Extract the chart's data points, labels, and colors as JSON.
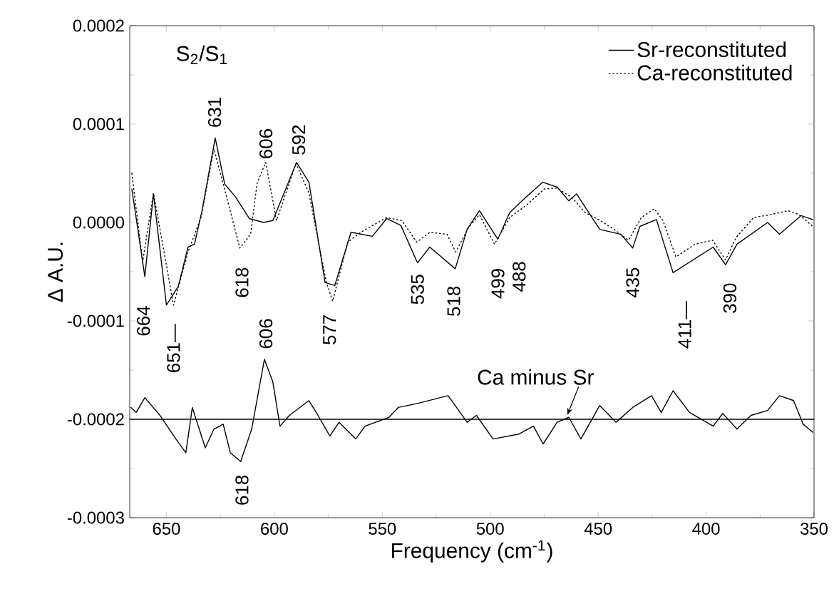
{
  "chart_data": {
    "type": "line",
    "xlabel": "Frequency (cm$^{-1}$)",
    "ylabel": "Δ A.U.",
    "xlim": [
      667,
      350
    ],
    "ylim": [
      -0.0003,
      0.0002
    ],
    "xticks": [
      650,
      600,
      550,
      500,
      450,
      400,
      350
    ],
    "yticks": [
      -0.0003,
      -0.0002,
      -0.0001,
      {
        "value": 0,
        "label": "0.0000"
      },
      0.0001,
      0.0002
    ],
    "legend": "top right",
    "marker": "none",
    "series": [
      {
        "name": "Sr-reconstituted",
        "color": "#000000",
        "line_style": "solid",
        "x": [
          666,
          660,
          656,
          650,
          644.5,
          640,
          637,
          633.5,
          627.4,
          623,
          618,
          611.6,
          605,
          600.7,
          589.7,
          584,
          576.5,
          572,
          564.5,
          554.6,
          548,
          541.4,
          533.7,
          528,
          516.2,
          510.7,
          505,
          496.5,
          491,
          483.3,
          475.7,
          469,
          463.6,
          460,
          449.3,
          439.5,
          434,
          430.7,
          423,
          415.3,
          396.7,
          391,
          385.7,
          371.5,
          366,
          356,
          350.7
        ],
        "values": [
          3.4e-05,
          -5.5e-05,
          2.9e-05,
          -8.4e-05,
          -6.5e-05,
          -2.5e-05,
          -2.2e-05,
          1.2e-05,
          8.6e-05,
          3.9e-05,
          2.6e-05,
          4e-06,
          0,
          2e-06,
          6.1e-05,
          4.1e-05,
          -6.1e-05,
          -6.4e-05,
          -1e-05,
          -1.4e-05,
          4e-06,
          -3e-06,
          -4.1e-05,
          -2.5e-05,
          -4.7e-05,
          -7e-06,
          1.2e-05,
          -1.7e-05,
          1e-05,
          2.6e-05,
          4.1e-05,
          3.6e-05,
          2.2e-05,
          2.9e-05,
          -7e-06,
          -1.2e-05,
          -2.6e-05,
          -4e-06,
          3e-06,
          -5.1e-05,
          -2.5e-05,
          -4.3e-05,
          -2.2e-05,
          0,
          -1.2e-05,
          7e-06,
          3e-06
        ]
      },
      {
        "name": "Ca-reconstituted",
        "color": "#000000",
        "line_style": "dotted",
        "x": [
          666,
          661,
          656,
          646.7,
          640,
          634,
          628,
          622,
          616,
          611,
          608,
          604,
          599,
          590,
          584,
          576,
          573,
          566,
          560,
          548,
          541,
          534,
          528,
          520,
          516,
          510,
          505,
          498,
          491,
          483,
          475,
          469,
          462,
          456,
          449,
          442,
          436,
          430,
          424,
          420,
          414,
          405,
          397,
          391,
          386,
          378,
          370,
          362,
          357,
          350
        ],
        "values": [
          5e-05,
          -4e-05,
          3e-05,
          -8.4e-05,
          -3e-05,
          5e-06,
          7.5e-05,
          2.5e-05,
          -2.6e-05,
          -1.2e-05,
          4e-05,
          6.1e-05,
          2e-06,
          6e-05,
          3e-05,
          -6e-05,
          -8e-05,
          -2e-05,
          -1e-05,
          5e-06,
          2e-06,
          -2e-05,
          -1e-05,
          -1.2e-05,
          -3e-05,
          -5e-06,
          8e-06,
          -2.2e-05,
          5e-06,
          1.8e-05,
          3.4e-05,
          3.5e-05,
          2.5e-05,
          1e-05,
          2e-06,
          -8e-06,
          -1.8e-05,
          5e-06,
          1.4e-05,
          2e-06,
          -3.5e-05,
          -2.2e-05,
          -1.8e-05,
          -3.8e-05,
          -1.5e-05,
          5e-06,
          8e-06,
          1.2e-05,
          8e-06,
          -5e-06
        ]
      },
      {
        "color": "#000000",
        "line_style": "solid",
        "x": [
          666.4,
          664,
          660,
          653,
          645.6,
          641,
          638,
          632,
          628,
          623.7,
          620.4,
          615.6,
          610.5,
          604.6,
          600.7,
          597.4,
          593,
          584,
          579.8,
          574.3,
          570,
          562.3,
          558,
          546.9,
          542.6,
          533.8,
          519.5,
          510.7,
          506.4,
          498.7,
          486.7,
          480,
          475.5,
          469,
          463.6,
          458,
          449.3,
          441.7,
          434,
          425.3,
          420.8,
          415.3,
          407.7,
          396.7,
          392.3,
          385.7,
          379.2,
          371.5,
          366,
          359.5,
          355,
          350.7
        ],
        "values": [
          -0.000188,
          -0.000193,
          -0.000178,
          -0.000196,
          -0.00022,
          -0.000234,
          -0.000188,
          -0.000229,
          -0.00021,
          -0.000205,
          -0.000234,
          -0.000243,
          -0.00021,
          -0.000139,
          -0.000162,
          -0.000207,
          -0.000196,
          -0.000181,
          -0.000196,
          -0.000217,
          -0.000203,
          -0.00022,
          -0.000207,
          -0.000198,
          -0.000188,
          -0.000184,
          -0.000176,
          -0.000203,
          -0.000196,
          -0.00022,
          -0.000215,
          -0.000207,
          -0.000225,
          -0.000203,
          -0.000198,
          -0.00022,
          -0.000186,
          -0.000203,
          -0.000188,
          -0.000176,
          -0.000193,
          -0.000171,
          -0.000193,
          -0.000207,
          -0.000194,
          -0.00021,
          -0.000196,
          -0.000191,
          -0.000176,
          -0.000181,
          -0.000205,
          -0.000213
        ]
      }
    ],
    "ref_lines": [
      {
        "axis": "y",
        "value": -0.0002,
        "color": "#000000"
      }
    ],
    "annotations": [
      "S$_{2}$/S$_{1}$",
      "664",
      "651—",
      "631",
      "618",
      "606",
      "592",
      "577",
      "535",
      "518",
      "499",
      "488",
      "435",
      "411—",
      "390",
      "606",
      "618",
      "Ca minus Sr"
    ]
  }
}
